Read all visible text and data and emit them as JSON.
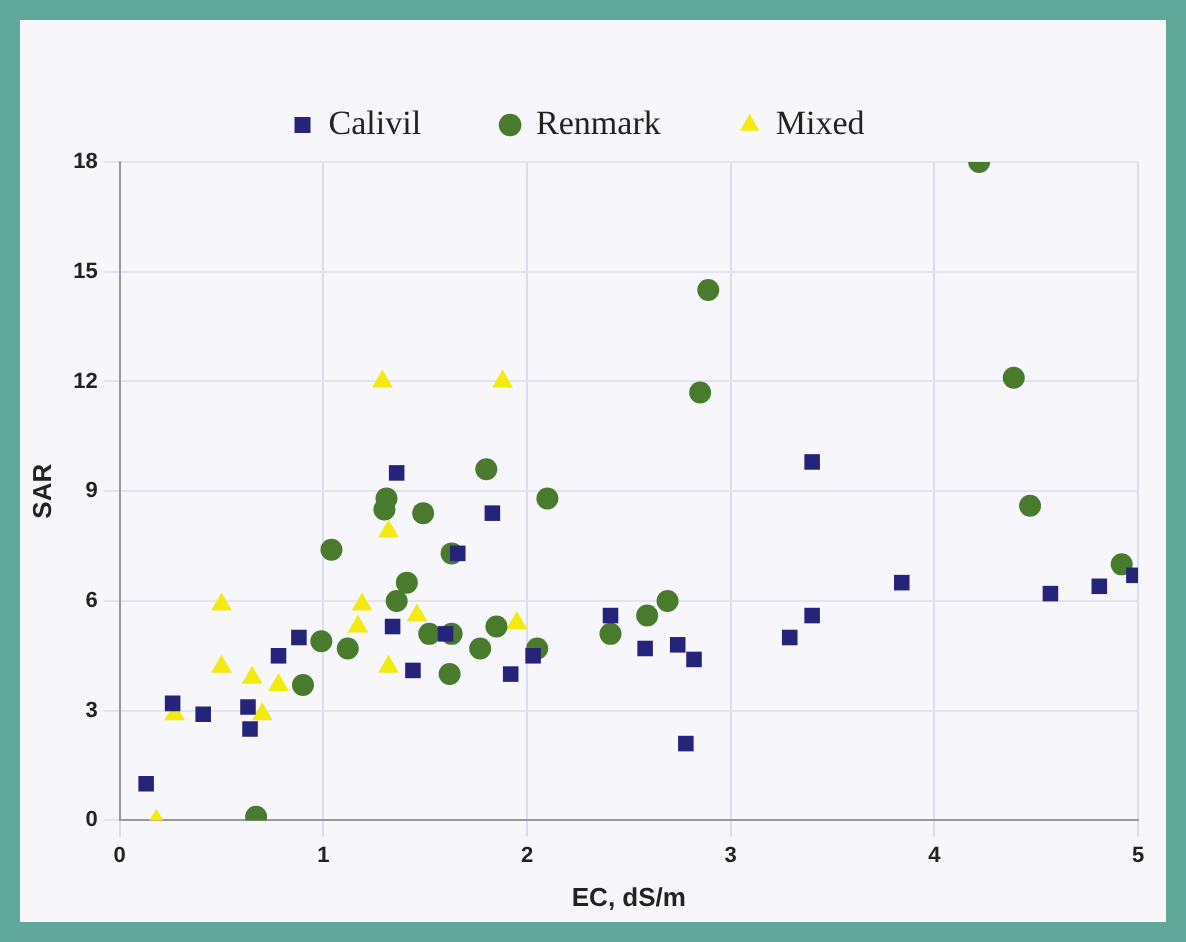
{
  "chart_data": {
    "type": "scatter",
    "xlabel": "EC, dS/m",
    "ylabel": "SAR",
    "xlim": [
      0,
      5
    ],
    "xticks": [
      0,
      1,
      2,
      3,
      4,
      5
    ],
    "ylim": [
      0,
      18
    ],
    "yticks": [
      0,
      3,
      6,
      9,
      12,
      15,
      18
    ],
    "grid": true,
    "legend": "top",
    "series": [
      {
        "name": "Calivil",
        "color": "#26237a",
        "marker": "square",
        "x": [
          0.13,
          0.26,
          0.41,
          0.63,
          0.64,
          0.78,
          0.88,
          1.34,
          1.36,
          1.44,
          1.6,
          1.66,
          1.83,
          1.92,
          2.03,
          2.41,
          2.58,
          2.74,
          2.78,
          2.82,
          3.29,
          3.4,
          3.4,
          3.84,
          4.57,
          4.81,
          4.98
        ],
        "values": [
          1.0,
          3.2,
          2.9,
          3.1,
          2.5,
          4.5,
          5.0,
          5.3,
          9.5,
          4.1,
          5.1,
          7.3,
          8.4,
          4.0,
          4.5,
          5.6,
          4.7,
          4.8,
          2.1,
          4.4,
          5.0,
          5.6,
          9.8,
          6.5,
          6.2,
          6.4,
          6.7
        ]
      },
      {
        "name": "Renmark",
        "color": "#4a7a2e",
        "marker": "circle",
        "x": [
          0.67,
          0.9,
          0.99,
          1.04,
          1.12,
          1.3,
          1.31,
          1.36,
          1.41,
          1.49,
          1.52,
          1.62,
          1.63,
          1.63,
          1.77,
          1.8,
          1.85,
          2.05,
          2.1,
          2.41,
          2.59,
          2.69,
          2.85,
          2.89,
          4.22,
          4.39,
          4.47,
          4.92
        ],
        "values": [
          0.1,
          3.7,
          4.9,
          7.4,
          4.7,
          8.5,
          8.8,
          6.0,
          6.5,
          8.4,
          5.1,
          4.0,
          5.1,
          7.3,
          4.7,
          9.6,
          5.3,
          4.7,
          8.8,
          5.1,
          5.6,
          6.0,
          11.7,
          14.5,
          18.0,
          12.1,
          8.6,
          7.0
        ]
      },
      {
        "name": "Mixed",
        "color": "#f2ea10",
        "marker": "triangle",
        "x": [
          0.18,
          0.27,
          0.5,
          0.5,
          0.65,
          0.7,
          0.78,
          1.17,
          1.19,
          1.29,
          1.32,
          1.32,
          1.46,
          1.88,
          1.95
        ],
        "values": [
          0.0,
          2.9,
          5.9,
          4.2,
          3.9,
          2.9,
          3.7,
          5.3,
          5.9,
          12.0,
          7.9,
          4.2,
          5.6,
          12.0,
          5.4
        ]
      }
    ]
  }
}
